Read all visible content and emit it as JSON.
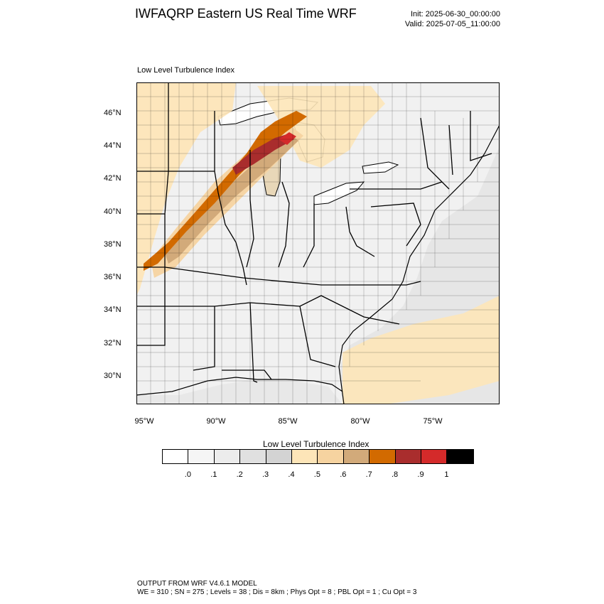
{
  "header": {
    "title": "IWFAQRP Eastern US Real Time WRF",
    "init": "Init: 2025-06-30_00:00:00",
    "valid": "Valid: 2025-07-05_11:00:00"
  },
  "panel_title": "Low Level Turbulence Index",
  "map": {
    "lat_labels": [
      "46°N",
      "44°N",
      "42°N",
      "40°N",
      "38°N",
      "36°N",
      "34°N",
      "32°N",
      "30°N"
    ],
    "lon_labels": [
      "95°W",
      "90°W",
      "85°W",
      "80°W",
      "75°W"
    ],
    "field": "Low Level Turbulence Index",
    "water_color": "#ffffff",
    "land_color": "#f2f2f2"
  },
  "colorbar": {
    "title": "Low Level Turbulence Index",
    "colors": [
      "#ffffff",
      "#f5f5f5",
      "#ececec",
      "#e0e0e0",
      "#d3d3d3",
      "#fde5b8",
      "#f6d3a0",
      "#d2aa7a",
      "#d26a00",
      "#a92d2d",
      "#d42a2a",
      "#000000"
    ],
    "labels": [
      ".0",
      ".1",
      ".2",
      ".3",
      ".4",
      ".5",
      ".6",
      ".7",
      ".8",
      ".9",
      "1"
    ]
  },
  "footer": {
    "line1": "OUTPUT FROM WRF V4.6.1 MODEL",
    "line2": "WE = 310 ; SN = 275 ; Levels = 38 ; Dis = 8km ; Phys Opt = 8 ; PBL Opt = 1 ; Cu Opt = 3"
  }
}
